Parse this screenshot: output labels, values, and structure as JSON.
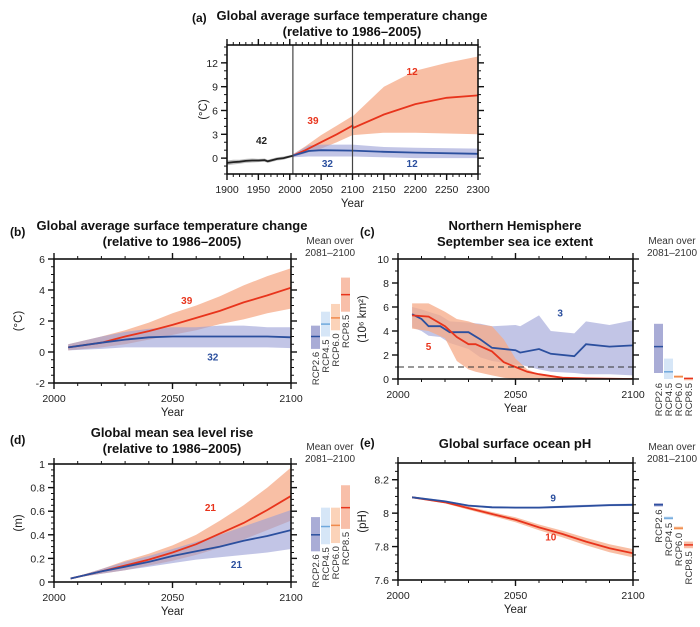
{
  "colors": {
    "red_line": "#e8341c",
    "red_band": "#f5a987",
    "blue_line": "#2b4f9e",
    "blue_band": "#9a9ed6",
    "black_line": "#222222",
    "black_band": "#aaaaaa",
    "RCP2.6_bar": "#a9acd6",
    "RCP2.6_mean": "#2b4f9e",
    "RCP4.5_bar": "#d6e6f7",
    "RCP4.5_mean": "#6fa8dc",
    "RCP6.0_bar": "#fbd3b9",
    "RCP6.0_mean": "#f08a4b",
    "RCP8.5_bar": "#f8bfa9",
    "RCP8.5_mean": "#e8341c"
  },
  "chart_data": [
    {
      "panel": "(a)",
      "type": "area",
      "title_lines": [
        "Global average surface temperature change",
        "(relative to 1986–2005)"
      ],
      "xlabel": "Year",
      "ylabel": "(°C)",
      "xlim": [
        1900,
        2300
      ],
      "ylim": [
        -2,
        14.25
      ],
      "xticks": [
        1900,
        1950,
        2000,
        2050,
        2100,
        2150,
        2200,
        2250,
        2300
      ],
      "yticks": [
        0,
        3,
        6,
        9,
        12
      ],
      "vlines": [
        2005,
        2100
      ],
      "series": [
        {
          "color": "black",
          "x": [
            1900,
            1910,
            1920,
            1930,
            1940,
            1950,
            1960,
            1965,
            1970,
            1980,
            1990,
            2000,
            2005
          ],
          "y": [
            -0.6,
            -0.5,
            -0.45,
            -0.35,
            -0.3,
            -0.3,
            -0.25,
            -0.4,
            -0.3,
            -0.1,
            0.0,
            0.2,
            0.3
          ],
          "low": [
            -0.9,
            -0.8,
            -0.7,
            -0.6,
            -0.55,
            -0.5,
            -0.45,
            -0.6,
            -0.5,
            -0.3,
            -0.2,
            0.05,
            0.15
          ],
          "high": [
            -0.3,
            -0.2,
            -0.2,
            -0.1,
            -0.05,
            -0.1,
            -0.05,
            -0.2,
            -0.1,
            0.1,
            0.2,
            0.35,
            0.45
          ]
        },
        {
          "color": "red",
          "x": [
            2005,
            2025,
            2050,
            2075,
            2100,
            2101,
            2150,
            2200,
            2250,
            2300
          ],
          "y": [
            0.3,
            1.0,
            2.0,
            3.0,
            4.1,
            3.8,
            5.5,
            6.8,
            7.6,
            7.9
          ],
          "low": [
            0.1,
            0.6,
            1.2,
            2.0,
            2.9,
            2.9,
            3.2,
            3.2,
            3.1,
            3.0
          ],
          "high": [
            0.5,
            1.5,
            2.9,
            4.1,
            5.3,
            5.3,
            9.0,
            11.0,
            12.0,
            12.8
          ]
        },
        {
          "color": "blue",
          "x": [
            2005,
            2030,
            2050,
            2100,
            2150,
            2200,
            2300
          ],
          "y": [
            0.3,
            0.9,
            1.0,
            0.95,
            0.8,
            0.7,
            0.55
          ],
          "low": [
            0.1,
            0.2,
            0.2,
            0.2,
            0.1,
            0.0,
            0.0
          ],
          "high": [
            0.5,
            1.6,
            1.7,
            1.7,
            1.4,
            1.3,
            1.2
          ]
        }
      ],
      "annotations": [
        {
          "text": "42",
          "x": 1955,
          "y": 1.8,
          "color": "black"
        },
        {
          "text": "39",
          "x": 2037,
          "y": 4.3,
          "color": "red"
        },
        {
          "text": "12",
          "x": 2195,
          "y": 10.5,
          "color": "red"
        },
        {
          "text": "32",
          "x": 2060,
          "y": -1.1,
          "color": "blue"
        },
        {
          "text": "12",
          "x": 2195,
          "y": -1.1,
          "color": "blue"
        }
      ]
    },
    {
      "panel": "(b)",
      "type": "area",
      "title_lines": [
        "Global average surface temperature change",
        "(relative to 1986–2005)"
      ],
      "xlabel": "Year",
      "ylabel": "(°C)",
      "xlim": [
        2000,
        2100
      ],
      "ylim": [
        -2,
        6
      ],
      "xticks": [
        2000,
        2050,
        2100
      ],
      "yticks": [
        -2,
        0,
        2,
        4,
        6
      ],
      "series": [
        {
          "color": "red",
          "x": [
            2006,
            2020,
            2030,
            2040,
            2050,
            2060,
            2070,
            2080,
            2090,
            2100
          ],
          "y": [
            0.3,
            0.6,
            1.0,
            1.35,
            1.75,
            2.2,
            2.65,
            3.2,
            3.65,
            4.15
          ],
          "low": [
            0.1,
            0.3,
            0.5,
            0.8,
            1.1,
            1.4,
            1.8,
            2.1,
            2.5,
            2.8
          ],
          "high": [
            0.5,
            1.0,
            1.4,
            1.9,
            2.5,
            3.0,
            3.6,
            4.3,
            4.9,
            5.4
          ]
        },
        {
          "color": "blue",
          "x": [
            2006,
            2020,
            2030,
            2040,
            2050,
            2060,
            2070,
            2080,
            2090,
            2100
          ],
          "y": [
            0.3,
            0.6,
            0.8,
            0.95,
            1.0,
            1.0,
            1.0,
            1.0,
            1.0,
            0.95
          ],
          "low": [
            0.1,
            0.2,
            0.3,
            0.3,
            0.3,
            0.3,
            0.3,
            0.3,
            0.3,
            0.25
          ],
          "high": [
            0.5,
            1.0,
            1.3,
            1.5,
            1.6,
            1.6,
            1.7,
            1.7,
            1.6,
            1.6
          ]
        }
      ],
      "annotations": [
        {
          "text": "39",
          "x": 2056,
          "y": 3.1,
          "color": "red"
        },
        {
          "text": "32",
          "x": 2067,
          "y": -0.55,
          "color": "blue"
        }
      ],
      "means_header": [
        "Mean over",
        "2081–2100"
      ],
      "bars": [
        {
          "name": "RCP2.6",
          "low": 0.2,
          "high": 1.7,
          "mean": 1.0
        },
        {
          "name": "RCP4.5",
          "low": 1.0,
          "high": 2.6,
          "mean": 1.8
        },
        {
          "name": "RCP6.0",
          "low": 1.4,
          "high": 3.1,
          "mean": 2.2
        },
        {
          "name": "RCP8.5",
          "low": 2.6,
          "high": 4.8,
          "mean": 3.7
        }
      ]
    },
    {
      "panel": "(c)",
      "type": "area",
      "title_lines": [
        "Northern Hemisphere",
        "September sea ice extent"
      ],
      "xlabel": "Year",
      "ylabel": "(10⁶ km²)",
      "xlim": [
        2000,
        2100
      ],
      "ylim": [
        0,
        10
      ],
      "xticks": [
        2000,
        2050,
        2100
      ],
      "yticks": [
        0,
        2,
        4,
        6,
        8,
        10
      ],
      "hline_dashed": 1,
      "series": [
        {
          "color": "blue",
          "x": [
            2006,
            2010,
            2013,
            2018,
            2022,
            2030,
            2035,
            2040,
            2050,
            2052,
            2060,
            2065,
            2075,
            2080,
            2090,
            2100
          ],
          "y": [
            5.4,
            5.0,
            4.4,
            4.4,
            3.9,
            3.9,
            3.3,
            2.6,
            2.4,
            2.2,
            2.5,
            2.1,
            1.9,
            2.9,
            2.7,
            2.8
          ],
          "low": [
            4.3,
            4.0,
            3.6,
            3.5,
            3.0,
            2.5,
            1.8,
            1.5,
            1.2,
            1.2,
            0.8,
            0.6,
            0.5,
            0.4,
            0.4,
            0.3
          ],
          "high": [
            6.0,
            5.8,
            5.6,
            5.3,
            4.8,
            4.7,
            4.6,
            4.4,
            4.5,
            4.4,
            5.3,
            4.0,
            3.8,
            4.8,
            4.5,
            4.9
          ]
        },
        {
          "color": "red",
          "x": [
            2006,
            2013,
            2020,
            2025,
            2030,
            2033,
            2040,
            2045,
            2050,
            2055,
            2060,
            2070,
            2080,
            2100
          ],
          "y": [
            5.3,
            5.2,
            4.4,
            3.5,
            2.9,
            2.9,
            2.3,
            1.4,
            1.0,
            0.6,
            0.4,
            0.1,
            0.05,
            0.0
          ],
          "low": [
            4.2,
            4.0,
            3.4,
            1.5,
            0.8,
            0.6,
            0.3,
            0.1,
            0,
            0,
            0,
            0,
            0,
            0
          ],
          "high": [
            6.3,
            6.3,
            5.6,
            5.0,
            4.8,
            4.6,
            4.4,
            3.3,
            1.7,
            0.8,
            0.4,
            0.2,
            0.1,
            0.05
          ]
        }
      ],
      "annotations": [
        {
          "text": "3",
          "x": 2069,
          "y": 5.2,
          "color": "blue"
        },
        {
          "text": "5",
          "x": 2013,
          "y": 2.4,
          "color": "red"
        }
      ],
      "means_header": [
        "Mean over",
        "2081–2100"
      ],
      "bars": [
        {
          "name": "RCP2.6",
          "low": 0.5,
          "high": 4.6,
          "mean": 2.7
        },
        {
          "name": "RCP4.5",
          "low": 0.0,
          "high": 1.7,
          "mean": 0.6
        },
        {
          "name": "RCP6.0",
          "low": 0.15,
          "high": 0.3,
          "mean": 0.2
        },
        {
          "name": "RCP8.5",
          "low": 0.0,
          "high": 0.1,
          "mean": 0.05
        }
      ]
    },
    {
      "panel": "(d)",
      "type": "area",
      "title_lines": [
        "Global mean sea level rise",
        "(relative to 1986–2005)"
      ],
      "xlabel": "Year",
      "ylabel": "(m)",
      "xlim": [
        2000,
        2100
      ],
      "ylim": [
        0,
        1
      ],
      "xticks": [
        2000,
        2050,
        2100
      ],
      "yticks": [
        0,
        0.2,
        0.4,
        0.6,
        0.8,
        1
      ],
      "series": [
        {
          "color": "red",
          "x": [
            2007,
            2020,
            2030,
            2040,
            2050,
            2060,
            2070,
            2080,
            2090,
            2100
          ],
          "y": [
            0.03,
            0.09,
            0.14,
            0.19,
            0.25,
            0.32,
            0.41,
            0.5,
            0.61,
            0.73
          ],
          "low": [
            0.03,
            0.07,
            0.1,
            0.14,
            0.18,
            0.23,
            0.29,
            0.36,
            0.44,
            0.52
          ],
          "high": [
            0.03,
            0.11,
            0.18,
            0.24,
            0.31,
            0.4,
            0.52,
            0.65,
            0.8,
            0.97
          ]
        },
        {
          "color": "blue",
          "x": [
            2007,
            2020,
            2030,
            2040,
            2050,
            2060,
            2070,
            2080,
            2090,
            2100
          ],
          "y": [
            0.03,
            0.09,
            0.13,
            0.17,
            0.22,
            0.26,
            0.3,
            0.35,
            0.39,
            0.44
          ],
          "low": [
            0.03,
            0.07,
            0.1,
            0.13,
            0.16,
            0.19,
            0.21,
            0.23,
            0.25,
            0.28
          ],
          "high": [
            0.03,
            0.11,
            0.17,
            0.22,
            0.28,
            0.34,
            0.4,
            0.47,
            0.54,
            0.61
          ]
        }
      ],
      "annotations": [
        {
          "text": "21",
          "x": 2066,
          "y": 0.6,
          "color": "red"
        },
        {
          "text": "21",
          "x": 2077,
          "y": 0.12,
          "color": "blue"
        }
      ],
      "means_header": [
        "Mean over",
        "2081–2100"
      ],
      "bars": [
        {
          "name": "RCP2.6",
          "low": 0.26,
          "high": 0.55,
          "mean": 0.4
        },
        {
          "name": "RCP4.5",
          "low": 0.32,
          "high": 0.63,
          "mean": 0.47
        },
        {
          "name": "RCP6.0",
          "low": 0.33,
          "high": 0.63,
          "mean": 0.48
        },
        {
          "name": "RCP8.5",
          "low": 0.45,
          "high": 0.82,
          "mean": 0.63
        }
      ]
    },
    {
      "panel": "(e)",
      "type": "area",
      "title_lines": [
        "Global surface ocean pH"
      ],
      "xlabel": "Year",
      "ylabel": "(pH)",
      "xlim": [
        2000,
        2100
      ],
      "ylim": [
        7.6,
        8.3
      ],
      "xticks": [
        2000,
        2050,
        2100
      ],
      "yticks": [
        7.6,
        7.8,
        8,
        8.2
      ],
      "series": [
        {
          "color": "red",
          "x": [
            2006,
            2020,
            2030,
            2040,
            2050,
            2060,
            2070,
            2080,
            2090,
            2100
          ],
          "y": [
            8.095,
            8.065,
            8.03,
            7.995,
            7.96,
            7.915,
            7.875,
            7.83,
            7.79,
            7.76
          ],
          "low": [
            8.09,
            8.058,
            8.02,
            7.983,
            7.945,
            7.898,
            7.855,
            7.808,
            7.766,
            7.735
          ],
          "high": [
            8.1,
            8.072,
            8.04,
            8.007,
            7.975,
            7.932,
            7.895,
            7.852,
            7.814,
            7.785
          ]
        },
        {
          "color": "blue",
          "x": [
            2006,
            2020,
            2030,
            2040,
            2050,
            2060,
            2070,
            2080,
            2090,
            2100
          ],
          "y": [
            8.095,
            8.07,
            8.045,
            8.035,
            8.033,
            8.033,
            8.038,
            8.043,
            8.048,
            8.05
          ],
          "low": [
            8.09,
            8.064,
            8.039,
            8.029,
            8.027,
            8.027,
            8.031,
            8.036,
            8.041,
            8.043
          ],
          "high": [
            8.1,
            8.076,
            8.051,
            8.041,
            8.039,
            8.039,
            8.045,
            8.05,
            8.055,
            8.057
          ]
        }
      ],
      "annotations": [
        {
          "text": "9",
          "x": 2066,
          "y": 8.07,
          "color": "blue"
        },
        {
          "text": "10",
          "x": 2065,
          "y": 7.835,
          "color": "red"
        }
      ],
      "means_header": [
        "Mean over",
        "2081–2100"
      ],
      "bars": [
        {
          "name": "RCP2.6",
          "low": 8.04,
          "high": 8.06,
          "mean": 8.05
        },
        {
          "name": "RCP4.5",
          "low": 7.96,
          "high": 7.98,
          "mean": 7.97
        },
        {
          "name": "RCP6.0",
          "low": 7.9,
          "high": 7.92,
          "mean": 7.91
        },
        {
          "name": "RCP8.5",
          "low": 7.79,
          "high": 7.83,
          "mean": 7.81
        }
      ]
    }
  ]
}
